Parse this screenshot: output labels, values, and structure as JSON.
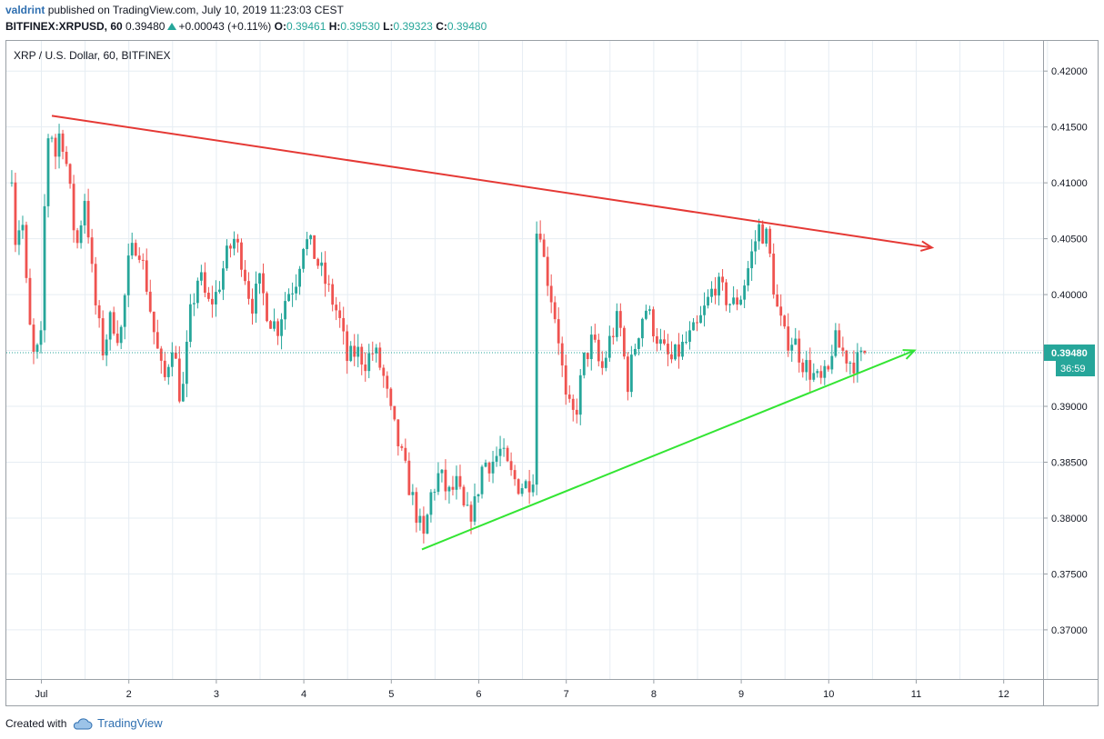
{
  "header": {
    "user": "valdrint",
    "published": "published on TradingView.com, July 10, 2019 11:23:03 CEST",
    "symbol": "BITFINEX:XRPUSD, 60",
    "last": "0.39480",
    "change": "+0.00043 (+0.11%)",
    "o_label": "O:",
    "o": "0.39461",
    "h_label": "H:",
    "h": "0.39530",
    "l_label": "L:",
    "l": "0.39323",
    "c_label": "C:",
    "c": "0.39480"
  },
  "footer": {
    "created_with": "Created with",
    "brand": "TradingView",
    "brand_icon": "tradingview-cloud-icon"
  },
  "colors": {
    "up": "#26a69a",
    "down": "#ef5350",
    "resistance": "#e53935",
    "support": "#33e533",
    "grid": "#e6edf3",
    "price_tag": "#26a69a"
  },
  "chart_data": {
    "type": "candlestick",
    "title": "XRP / U.S. Dollar, 60, BITFINEX",
    "x_ticks": [
      "Jul",
      "2",
      "3",
      "4",
      "5",
      "6",
      "7",
      "8",
      "9",
      "10",
      "11",
      "12"
    ],
    "x_tick_days": [
      1,
      2,
      3,
      4,
      5,
      6,
      7,
      8,
      9,
      10,
      11,
      12
    ],
    "xlim": [
      0.6,
      12.45
    ],
    "y_ticks": [
      "0.42000",
      "0.41500",
      "0.41000",
      "0.40500",
      "0.40000",
      "0.39000",
      "0.38500",
      "0.38000",
      "0.37500",
      "0.37000"
    ],
    "ylim": [
      0.3656,
      0.4227
    ],
    "last_price": 0.3948,
    "last_price_label": "0.39480",
    "countdown": "36:59",
    "series_path": [
      [
        0.62,
        0.41
      ],
      [
        0.65,
        0.413
      ],
      [
        0.7,
        0.405
      ],
      [
        0.78,
        0.407
      ],
      [
        0.85,
        0.398
      ],
      [
        0.92,
        0.394
      ],
      [
        1.0,
        0.396
      ],
      [
        1.05,
        0.412
      ],
      [
        1.1,
        0.416
      ],
      [
        1.15,
        0.412
      ],
      [
        1.22,
        0.415
      ],
      [
        1.3,
        0.411
      ],
      [
        1.4,
        0.404
      ],
      [
        1.5,
        0.409
      ],
      [
        1.6,
        0.4
      ],
      [
        1.7,
        0.395
      ],
      [
        1.8,
        0.398
      ],
      [
        1.9,
        0.396
      ],
      [
        2.0,
        0.403
      ],
      [
        2.1,
        0.405
      ],
      [
        2.2,
        0.401
      ],
      [
        2.3,
        0.396
      ],
      [
        2.4,
        0.392
      ],
      [
        2.5,
        0.396
      ],
      [
        2.6,
        0.39
      ],
      [
        2.7,
        0.398
      ],
      [
        2.8,
        0.402
      ],
      [
        2.9,
        0.399
      ],
      [
        3.0,
        0.4
      ],
      [
        3.1,
        0.403
      ],
      [
        3.2,
        0.405
      ],
      [
        3.3,
        0.403
      ],
      [
        3.4,
        0.399
      ],
      [
        3.5,
        0.401
      ],
      [
        3.6,
        0.398
      ],
      [
        3.7,
        0.397
      ],
      [
        3.8,
        0.4
      ],
      [
        3.9,
        0.401
      ],
      [
        4.0,
        0.405
      ],
      [
        4.1,
        0.404
      ],
      [
        4.2,
        0.402
      ],
      [
        4.3,
        0.4
      ],
      [
        4.4,
        0.398
      ],
      [
        4.5,
        0.394
      ],
      [
        4.6,
        0.395
      ],
      [
        4.7,
        0.394
      ],
      [
        4.8,
        0.395
      ],
      [
        4.9,
        0.393
      ],
      [
        5.0,
        0.389
      ],
      [
        5.1,
        0.386
      ],
      [
        5.2,
        0.383
      ],
      [
        5.3,
        0.38
      ],
      [
        5.37,
        0.378
      ],
      [
        5.45,
        0.382
      ],
      [
        5.55,
        0.384
      ],
      [
        5.65,
        0.382
      ],
      [
        5.75,
        0.383
      ],
      [
        5.85,
        0.38
      ],
      [
        5.95,
        0.381
      ],
      [
        6.05,
        0.385
      ],
      [
        6.15,
        0.385
      ],
      [
        6.25,
        0.386
      ],
      [
        6.35,
        0.384
      ],
      [
        6.45,
        0.383
      ],
      [
        6.55,
        0.383
      ],
      [
        6.62,
        0.384
      ],
      [
        6.67,
        0.41
      ],
      [
        6.72,
        0.404
      ],
      [
        6.8,
        0.401
      ],
      [
        6.9,
        0.397
      ],
      [
        7.0,
        0.39
      ],
      [
        7.1,
        0.389
      ],
      [
        7.2,
        0.394
      ],
      [
        7.3,
        0.396
      ],
      [
        7.4,
        0.393
      ],
      [
        7.5,
        0.396
      ],
      [
        7.6,
        0.398
      ],
      [
        7.7,
        0.392
      ],
      [
        7.8,
        0.396
      ],
      [
        7.9,
        0.399
      ],
      [
        8.0,
        0.397
      ],
      [
        8.1,
        0.395
      ],
      [
        8.2,
        0.394
      ],
      [
        8.3,
        0.395
      ],
      [
        8.4,
        0.396
      ],
      [
        8.5,
        0.397
      ],
      [
        8.6,
        0.399
      ],
      [
        8.7,
        0.401
      ],
      [
        8.8,
        0.4
      ],
      [
        8.9,
        0.399
      ],
      [
        9.0,
        0.4
      ],
      [
        9.1,
        0.403
      ],
      [
        9.2,
        0.406
      ],
      [
        9.3,
        0.405
      ],
      [
        9.4,
        0.399
      ],
      [
        9.5,
        0.396
      ],
      [
        9.6,
        0.396
      ],
      [
        9.7,
        0.394
      ],
      [
        9.8,
        0.393
      ],
      [
        9.9,
        0.392
      ],
      [
        10.0,
        0.393
      ],
      [
        10.05,
        0.396
      ],
      [
        10.15,
        0.395
      ],
      [
        10.25,
        0.394
      ],
      [
        10.35,
        0.394
      ],
      [
        10.42,
        0.3948
      ]
    ],
    "trendlines": [
      {
        "name": "resistance",
        "color": "#e53935",
        "from": [
          1.12,
          0.416
        ],
        "to": [
          11.18,
          0.4042
        ],
        "arrow": true
      },
      {
        "name": "support",
        "color": "#33e533",
        "from": [
          5.35,
          0.3772
        ],
        "to": [
          10.98,
          0.395
        ],
        "arrow": true
      }
    ]
  }
}
